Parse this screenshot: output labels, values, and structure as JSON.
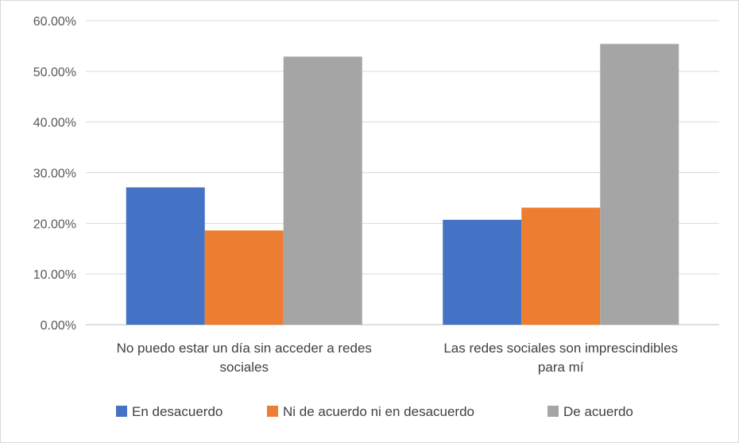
{
  "chart_data": {
    "type": "bar",
    "title": "",
    "xlabel": "",
    "ylabel": "",
    "categories": [
      [
        "No puedo estar un día sin acceder a redes",
        "sociales"
      ],
      [
        "Las redes sociales son imprescindibles",
        "para mí"
      ]
    ],
    "series": [
      {
        "name": "En desacuerdo",
        "color": "#4472c4",
        "values": [
          27.1,
          20.7
        ]
      },
      {
        "name": "Ni de acuerdo ni en desacuerdo",
        "color": "#ed7d31",
        "values": [
          18.6,
          23.1
        ]
      },
      {
        "name": "De acuerdo",
        "color": "#a5a5a5",
        "values": [
          52.9,
          55.4
        ]
      }
    ],
    "ylim": [
      0,
      60
    ],
    "yticks": [
      "0.00%",
      "10.00%",
      "20.00%",
      "30.00%",
      "40.00%",
      "50.00%",
      "60.00%"
    ],
    "grid": true,
    "legend": "bottom"
  }
}
